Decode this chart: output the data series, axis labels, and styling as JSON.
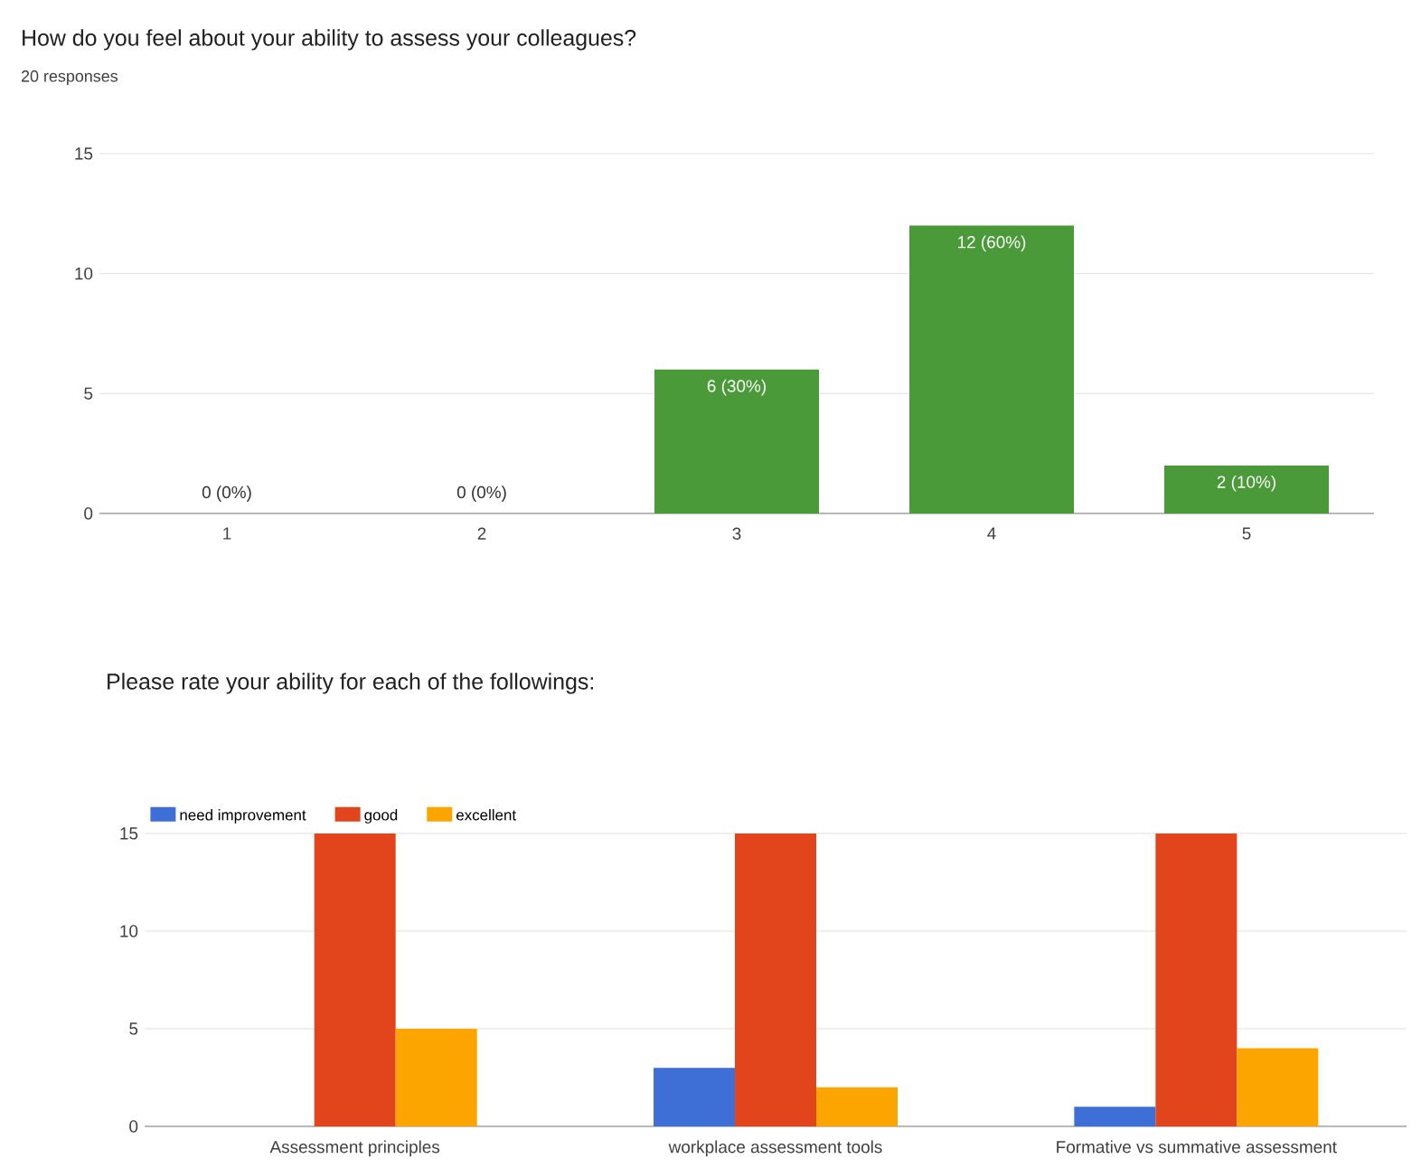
{
  "chart_data": [
    {
      "type": "bar",
      "title": "How do you feel about your ability to assess your colleagues?",
      "subtitle": "20 responses",
      "categories": [
        "1",
        "2",
        "3",
        "4",
        "5"
      ],
      "values": [
        0,
        0,
        6,
        12,
        2
      ],
      "color": "#4a9a3a",
      "value_labels": [
        "0 (0%)",
        "0 (0%)",
        "6 (30%)",
        "12 (60%)",
        "2 (10%)"
      ],
      "ylim": [
        0,
        15
      ],
      "yticks": [
        0,
        5,
        10,
        15
      ],
      "grid": "y"
    },
    {
      "type": "bar",
      "title": "Please rate your ability for each of the followings:",
      "categories": [
        "Assessment principles",
        "workplace assessment tools",
        "Formative vs summative assessment"
      ],
      "series": [
        {
          "name": "need improvement",
          "color": "#3d6fd6",
          "values": [
            0,
            3,
            1
          ]
        },
        {
          "name": "good",
          "color": "#e2441c",
          "values": [
            15,
            15,
            15
          ]
        },
        {
          "name": "excellent",
          "color": "#fca400",
          "values": [
            5,
            2,
            4
          ]
        }
      ],
      "ylim": [
        0,
        15
      ],
      "yticks": [
        0,
        5,
        10,
        15
      ],
      "grid": "y",
      "legend": "top left"
    }
  ]
}
